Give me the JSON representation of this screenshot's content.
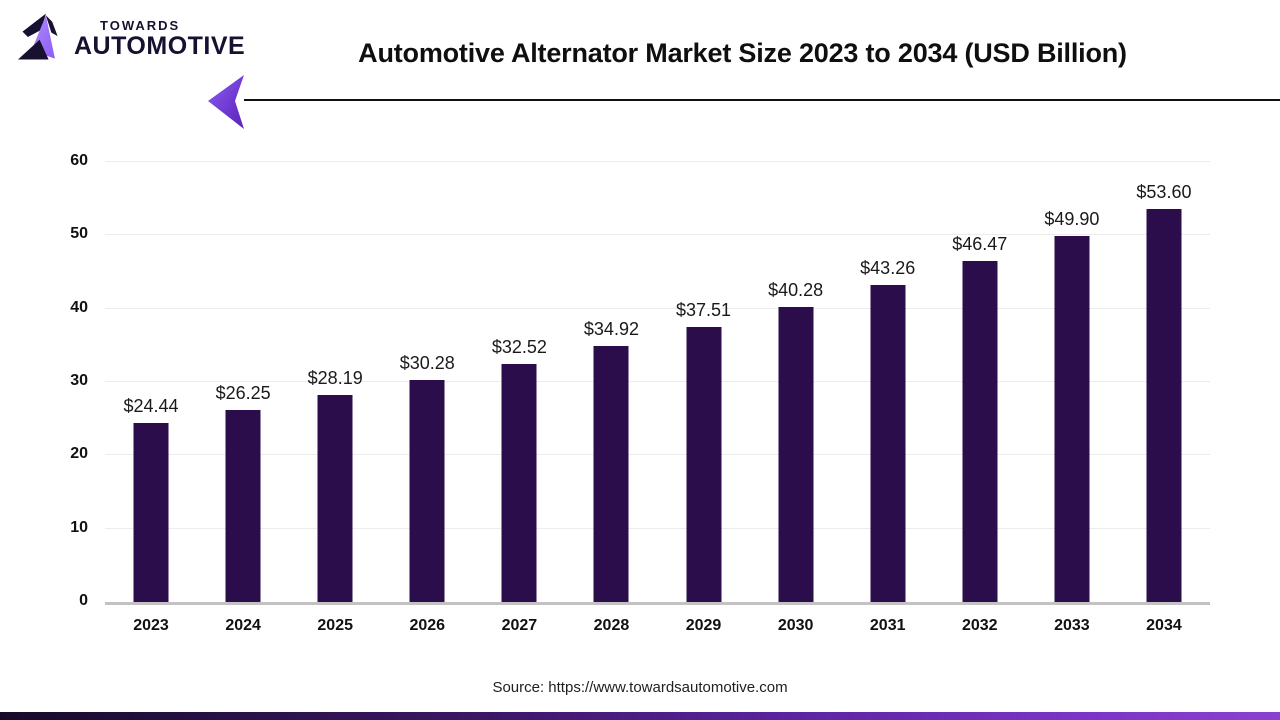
{
  "brand": {
    "line1": "TOWARDS",
    "line2": "AUTOMOTIVE"
  },
  "header": {
    "title": "Automotive Alternator Market Size 2023 to 2034 (USD Billion)"
  },
  "chart_data": {
    "type": "bar",
    "title": "Automotive Alternator Market Size 2023 to 2034 (USD Billion)",
    "categories": [
      "2023",
      "2024",
      "2025",
      "2026",
      "2027",
      "2028",
      "2029",
      "2030",
      "2031",
      "2032",
      "2033",
      "2034"
    ],
    "values": [
      24.44,
      26.25,
      28.19,
      30.28,
      32.52,
      34.92,
      37.51,
      40.28,
      43.26,
      46.47,
      49.9,
      53.6
    ],
    "value_labels": [
      "$24.44",
      "$26.25",
      "$28.19",
      "$30.28",
      "$32.52",
      "$34.92",
      "$37.51",
      "$40.28",
      "$43.26",
      "$46.47",
      "$49.90",
      "$53.60"
    ],
    "xlabel": "",
    "ylabel": "",
    "ylim": [
      0,
      60
    ],
    "yticks": [
      0,
      10,
      20,
      30,
      40,
      50,
      60
    ],
    "grid": true,
    "legend": "none",
    "bar_color": "#2a0d4a"
  },
  "footer": {
    "source": "Source: https://www.towardsautomotive.com"
  },
  "colors": {
    "bar": "#2a0d4a",
    "brand_dark": "#171031",
    "accent_purple": "#7c3aed",
    "accent_purple_light": "#a78bfa",
    "grid": "#ececec",
    "axis": "#c2c2c2",
    "bottom_bar_left": "#170a28",
    "bottom_bar_right": "#8b3fd0"
  }
}
